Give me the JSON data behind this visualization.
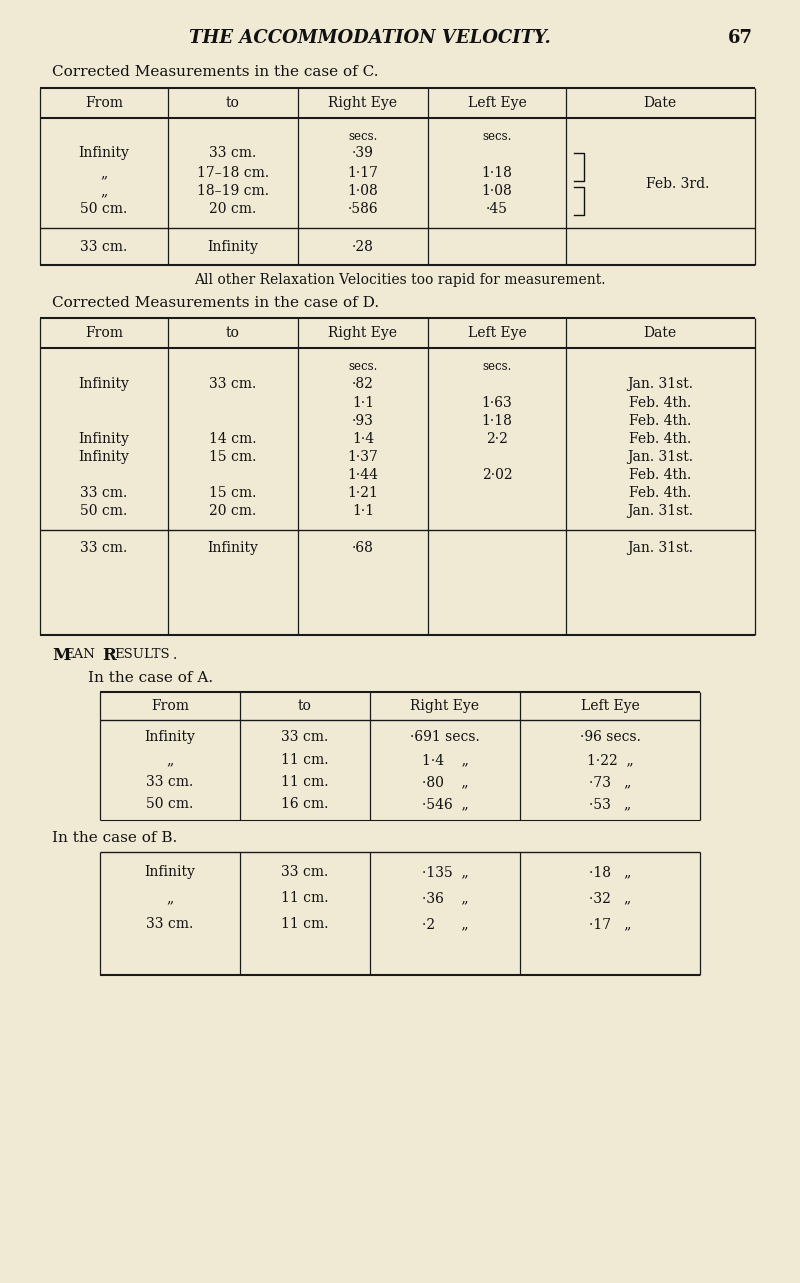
{
  "bg_color": "#f0ead5",
  "text_color": "#111111",
  "page_title": "THE ACCOMMODATION VELOCITY.",
  "page_number": "67",
  "section_C_title": "Corrected Measurements in the case of C.",
  "section_D_title": "Corrected Measurements in the case of D.",
  "mean_results": "Mean Results.",
  "mean_A_title": "In the case of A.",
  "mean_B_title": "In the case of B.",
  "headers_5": [
    "From",
    "to",
    "Right Eye",
    "Left Eye",
    "Date"
  ],
  "headers_4": [
    "From",
    "to",
    "Right Eye",
    "Left Eye"
  ],
  "relaxation_note": "All other Relaxation Velocities too rapid for measurement.",
  "col5_x": [
    40,
    168,
    298,
    428,
    566,
    755
  ],
  "col4_x": [
    100,
    240,
    370,
    520,
    700
  ],
  "col4B_x": [
    100,
    240,
    370,
    520,
    700
  ]
}
